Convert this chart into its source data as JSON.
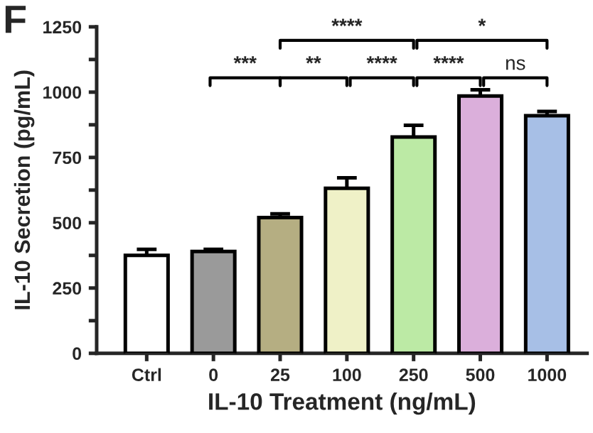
{
  "chart_data": {
    "type": "bar",
    "xlabel": "IL-10 Treatment (ng/mL)",
    "ylabel": "IL-10 Secretion (pg/mL)",
    "categories": [
      "Ctrl",
      "0",
      "25",
      "100",
      "250",
      "500",
      "1000"
    ],
    "values": [
      375,
      390,
      520,
      632,
      828,
      985,
      910
    ],
    "errors": [
      23,
      8,
      14,
      40,
      45,
      24,
      16
    ],
    "colors": [
      "#ffffff",
      "#9a9a9a",
      "#bdb47a",
      "#f5f8c0",
      "#b8f59a",
      "#e2a8e2",
      "#9dbdf0"
    ],
    "ylim": [
      0,
      1250
    ],
    "yticks": [
      0,
      {
        "value": 125,
        "label": null
      },
      250,
      {
        "value": 375,
        "label": null
      },
      500,
      {
        "value": 625,
        "label": null
      },
      750,
      {
        "value": 875,
        "label": null
      },
      1000,
      {
        "value": 1125,
        "label": null
      },
      1250
    ],
    "grid": false,
    "annotations": [
      "F",
      "***",
      "**",
      "****",
      "****",
      "ns",
      "****",
      "*"
    ]
  }
}
